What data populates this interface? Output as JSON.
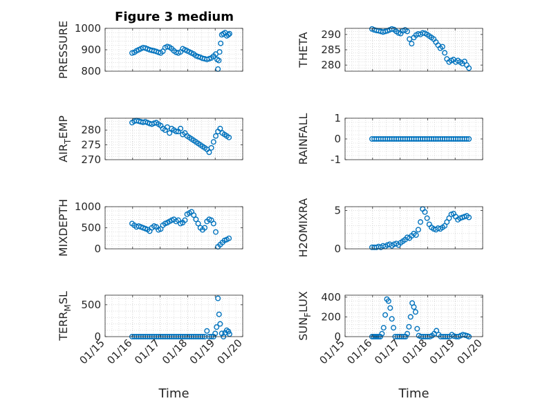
{
  "figure_title": "Figure 3 medium",
  "chart_data": [
    {
      "type": "scatter",
      "id": "pressure",
      "title": "Figure 3 medium",
      "ylabel": "PRESSURE",
      "xlabel": "",
      "ylim": [
        800,
        1000
      ],
      "yticks": [
        800,
        900,
        1000
      ],
      "yticklabels": [
        "800",
        "900",
        "1000"
      ],
      "xlim": [
        0,
        5
      ],
      "xticklabels": [],
      "grid": true,
      "marker_color": "#0072BD",
      "x": [
        0.98,
        1.06,
        1.14,
        1.22,
        1.3,
        1.38,
        1.46,
        1.54,
        1.62,
        1.7,
        1.78,
        1.86,
        1.94,
        2.02,
        2.1,
        2.18,
        2.26,
        2.34,
        2.42,
        2.5,
        2.58,
        2.66,
        2.74,
        2.82,
        2.9,
        2.98,
        3.06,
        3.14,
        3.22,
        3.3,
        3.38,
        3.46,
        3.54,
        3.62,
        3.7,
        3.78,
        3.86,
        3.94,
        4.02,
        4.07,
        4.1,
        4.13,
        4.16,
        4.2,
        4.24,
        4.3,
        4.36,
        4.42,
        4.48,
        4.52
      ],
      "y": [
        885,
        888,
        895,
        900,
        905,
        910,
        908,
        904,
        900,
        897,
        895,
        892,
        888,
        885,
        893,
        910,
        915,
        912,
        905,
        895,
        888,
        885,
        890,
        905,
        900,
        895,
        890,
        885,
        880,
        872,
        868,
        865,
        860,
        858,
        855,
        858,
        862,
        870,
        880,
        855,
        810,
        850,
        890,
        930,
        970,
        975,
        980,
        965,
        970,
        975
      ]
    },
    {
      "type": "scatter",
      "id": "theta",
      "ylabel": "THETA",
      "xlabel": "",
      "ylim": [
        278,
        292
      ],
      "yticks": [
        280,
        285,
        290
      ],
      "yticklabels": [
        "280",
        "285",
        "290"
      ],
      "xlim": [
        0,
        5
      ],
      "xticklabels": [],
      "grid": true,
      "marker_color": "#0072BD",
      "x": [
        0.98,
        1.06,
        1.14,
        1.22,
        1.3,
        1.38,
        1.46,
        1.54,
        1.62,
        1.7,
        1.78,
        1.86,
        1.94,
        2.02,
        2.1,
        2.18,
        2.26,
        2.34,
        2.42,
        2.5,
        2.58,
        2.66,
        2.74,
        2.82,
        2.9,
        2.98,
        3.06,
        3.14,
        3.22,
        3.3,
        3.38,
        3.46,
        3.54,
        3.62,
        3.7,
        3.78,
        3.86,
        3.94,
        4.02,
        4.1,
        4.18,
        4.26,
        4.34,
        4.42,
        4.5
      ],
      "y": [
        291.8,
        291.5,
        291.3,
        291.2,
        291.0,
        290.8,
        291.0,
        291.2,
        291.5,
        291.8,
        291.6,
        291.0,
        290.5,
        290.3,
        291.2,
        291.5,
        291.0,
        288.5,
        287.0,
        289.0,
        289.8,
        290.2,
        290.0,
        290.5,
        290.4,
        290.0,
        289.5,
        289.0,
        288.5,
        287.5,
        286.5,
        285.5,
        286.0,
        284.0,
        282.0,
        281.0,
        281.5,
        281.8,
        281.0,
        281.5,
        281.0,
        280.5,
        281.2,
        280.0,
        279.0
      ]
    },
    {
      "type": "scatter",
      "id": "air_temp",
      "ylabel": "AIR_TEMP",
      "xlabel": "",
      "ylim": [
        270,
        284
      ],
      "yticks": [
        270,
        275,
        280
      ],
      "yticklabels": [
        "270",
        "275",
        "280"
      ],
      "xlim": [
        0,
        5
      ],
      "xticklabels": [],
      "grid": true,
      "marker_color": "#0072BD",
      "x": [
        0.98,
        1.06,
        1.14,
        1.22,
        1.3,
        1.38,
        1.46,
        1.54,
        1.62,
        1.7,
        1.78,
        1.86,
        1.94,
        2.02,
        2.1,
        2.18,
        2.26,
        2.34,
        2.42,
        2.5,
        2.58,
        2.66,
        2.74,
        2.82,
        2.9,
        2.98,
        3.06,
        3.14,
        3.22,
        3.3,
        3.38,
        3.46,
        3.54,
        3.62,
        3.7,
        3.78,
        3.86,
        3.94,
        4.02,
        4.1,
        4.18,
        4.26,
        4.34,
        4.42,
        4.5
      ],
      "y": [
        282.5,
        283.0,
        283.2,
        283.0,
        282.8,
        282.6,
        282.8,
        282.5,
        282.2,
        282.0,
        282.3,
        282.5,
        282.0,
        281.5,
        280.5,
        280.0,
        281.0,
        279.0,
        280.5,
        280.0,
        279.5,
        279.5,
        280.5,
        278.5,
        279.0,
        278.0,
        277.5,
        277.0,
        276.5,
        276.0,
        275.5,
        275.0,
        274.5,
        274.0,
        273.5,
        272.5,
        274.0,
        276.0,
        278.0,
        279.5,
        280.5,
        279.0,
        278.5,
        278.0,
        277.5
      ]
    },
    {
      "type": "scatter",
      "id": "rainfall",
      "ylabel": "RAINFALL",
      "xlabel": "",
      "ylim": [
        -1,
        1
      ],
      "yticks": [
        -1,
        0,
        1
      ],
      "yticklabels": [
        "-1",
        "0",
        "1"
      ],
      "xlim": [
        0,
        5
      ],
      "xticklabels": [],
      "grid": true,
      "marker_color": "#0072BD",
      "x": [
        0.98,
        1.06,
        1.14,
        1.22,
        1.3,
        1.38,
        1.46,
        1.54,
        1.62,
        1.7,
        1.78,
        1.86,
        1.94,
        2.02,
        2.1,
        2.18,
        2.26,
        2.34,
        2.42,
        2.5,
        2.58,
        2.66,
        2.74,
        2.82,
        2.9,
        2.98,
        3.06,
        3.14,
        3.22,
        3.3,
        3.38,
        3.46,
        3.54,
        3.62,
        3.7,
        3.78,
        3.86,
        3.94,
        4.02,
        4.1,
        4.18,
        4.26,
        4.34,
        4.42,
        4.5
      ],
      "y": [
        0,
        0,
        0,
        0,
        0,
        0,
        0,
        0,
        0,
        0,
        0,
        0,
        0,
        0,
        0,
        0,
        0,
        0,
        0,
        0,
        0,
        0,
        0,
        0,
        0,
        0,
        0,
        0,
        0,
        0,
        0,
        0,
        0,
        0,
        0,
        0,
        0,
        0,
        0,
        0,
        0,
        0,
        0,
        0,
        0
      ]
    },
    {
      "type": "scatter",
      "id": "mixdepth",
      "ylabel": "MIXDEPTH",
      "xlabel": "",
      "ylim": [
        0,
        1000
      ],
      "yticks": [
        0,
        500,
        1000
      ],
      "yticklabels": [
        "0",
        "500",
        "1000"
      ],
      "xlim": [
        0,
        5
      ],
      "xticklabels": [],
      "grid": true,
      "marker_color": "#0072BD",
      "x": [
        0.98,
        1.06,
        1.14,
        1.22,
        1.3,
        1.38,
        1.46,
        1.54,
        1.62,
        1.7,
        1.78,
        1.86,
        1.94,
        2.02,
        2.1,
        2.18,
        2.26,
        2.34,
        2.42,
        2.5,
        2.58,
        2.66,
        2.74,
        2.82,
        2.9,
        2.98,
        3.06,
        3.14,
        3.22,
        3.3,
        3.38,
        3.46,
        3.54,
        3.62,
        3.7,
        3.78,
        3.86,
        3.94,
        4.02,
        4.1,
        4.18,
        4.26,
        4.34,
        4.42,
        4.5
      ],
      "y": [
        600,
        560,
        520,
        540,
        520,
        500,
        480,
        460,
        420,
        500,
        540,
        520,
        450,
        470,
        560,
        600,
        620,
        650,
        680,
        700,
        650,
        680,
        600,
        620,
        680,
        820,
        850,
        880,
        800,
        700,
        600,
        500,
        450,
        500,
        650,
        700,
        680,
        600,
        400,
        50,
        100,
        150,
        200,
        220,
        250
      ]
    },
    {
      "type": "scatter",
      "id": "h2omixra",
      "ylabel": "H2OMIXRA",
      "xlabel": "",
      "ylim": [
        0,
        5.5
      ],
      "yticks": [
        0,
        5
      ],
      "yticklabels": [
        "0",
        "5"
      ],
      "xlim": [
        0,
        5
      ],
      "xticklabels": [],
      "grid": true,
      "marker_color": "#0072BD",
      "x": [
        0.98,
        1.06,
        1.14,
        1.22,
        1.3,
        1.38,
        1.46,
        1.54,
        1.62,
        1.7,
        1.78,
        1.86,
        1.94,
        2.02,
        2.1,
        2.18,
        2.26,
        2.34,
        2.42,
        2.5,
        2.58,
        2.66,
        2.74,
        2.82,
        2.9,
        2.98,
        3.06,
        3.14,
        3.22,
        3.3,
        3.38,
        3.46,
        3.54,
        3.62,
        3.7,
        3.78,
        3.86,
        3.94,
        4.02,
        4.1,
        4.18,
        4.26,
        4.34,
        4.42,
        4.5
      ],
      "y": [
        0.2,
        0.2,
        0.2,
        0.3,
        0.2,
        0.4,
        0.3,
        0.5,
        0.6,
        0.4,
        0.6,
        0.7,
        0.5,
        0.8,
        1.0,
        1.2,
        1.5,
        1.4,
        1.7,
        2.0,
        1.8,
        2.5,
        3.5,
        5.2,
        4.8,
        4.0,
        3.2,
        2.8,
        2.6,
        2.5,
        2.7,
        2.6,
        2.8,
        3.0,
        3.5,
        4.0,
        4.5,
        4.6,
        4.2,
        3.8,
        4.0,
        4.1,
        4.2,
        4.3,
        4.1
      ]
    },
    {
      "type": "scatter",
      "id": "terr_msl",
      "ylabel": "TERR_MSL",
      "xlabel": "Time",
      "ylim": [
        0,
        650
      ],
      "yticks": [
        0,
        500
      ],
      "yticklabels": [
        "0",
        "500"
      ],
      "xlim": [
        0,
        5
      ],
      "xticklabels": [
        "01/15",
        "01/16",
        "01/17",
        "01/18",
        "01/19",
        "01/20"
      ],
      "grid": true,
      "marker_color": "#0072BD",
      "x": [
        0.98,
        1.06,
        1.14,
        1.22,
        1.3,
        1.38,
        1.46,
        1.54,
        1.62,
        1.7,
        1.78,
        1.86,
        1.94,
        2.02,
        2.1,
        2.18,
        2.26,
        2.34,
        2.42,
        2.5,
        2.58,
        2.66,
        2.74,
        2.82,
        2.9,
        2.98,
        3.06,
        3.14,
        3.22,
        3.3,
        3.38,
        3.46,
        3.54,
        3.62,
        3.7,
        3.78,
        3.86,
        3.94,
        4.0,
        4.05,
        4.1,
        4.14,
        4.18,
        4.24,
        4.3,
        4.36,
        4.42,
        4.48,
        4.52
      ],
      "y": [
        0,
        0,
        0,
        0,
        0,
        0,
        0,
        0,
        0,
        0,
        0,
        0,
        0,
        0,
        0,
        0,
        0,
        0,
        0,
        0,
        0,
        0,
        0,
        0,
        0,
        0,
        0,
        0,
        0,
        0,
        0,
        0,
        0,
        0,
        90,
        0,
        0,
        0,
        50,
        150,
        600,
        350,
        200,
        50,
        0,
        60,
        100,
        80,
        40
      ]
    },
    {
      "type": "scatter",
      "id": "sun_flux",
      "ylabel": "SUN_FLUX",
      "xlabel": "Time",
      "ylim": [
        0,
        420
      ],
      "yticks": [
        0,
        200,
        400
      ],
      "yticklabels": [
        "0",
        "200",
        "400"
      ],
      "xlim": [
        0,
        5
      ],
      "xticklabels": [
        "01/15",
        "01/16",
        "01/17",
        "01/18",
        "01/19",
        "01/20"
      ],
      "grid": true,
      "marker_color": "#0072BD",
      "x": [
        0.98,
        1.04,
        1.1,
        1.16,
        1.22,
        1.28,
        1.34,
        1.4,
        1.46,
        1.52,
        1.58,
        1.64,
        1.7,
        1.76,
        1.82,
        1.9,
        1.98,
        2.06,
        2.14,
        2.2,
        2.26,
        2.32,
        2.38,
        2.44,
        2.5,
        2.56,
        2.62,
        2.68,
        2.76,
        2.84,
        2.92,
        3.0,
        3.08,
        3.16,
        3.24,
        3.32,
        3.4,
        3.48,
        3.56,
        3.64,
        3.72,
        3.8,
        3.88,
        3.96,
        4.04,
        4.12,
        4.2,
        4.28,
        4.36,
        4.44,
        4.5
      ],
      "y": [
        0,
        0,
        0,
        0,
        0,
        0,
        30,
        90,
        220,
        380,
        360,
        290,
        180,
        90,
        0,
        0,
        0,
        0,
        0,
        0,
        30,
        100,
        200,
        340,
        300,
        250,
        80,
        10,
        0,
        0,
        0,
        0,
        0,
        10,
        30,
        60,
        20,
        0,
        0,
        0,
        0,
        0,
        20,
        5,
        0,
        0,
        10,
        20,
        15,
        8,
        0
      ]
    }
  ]
}
